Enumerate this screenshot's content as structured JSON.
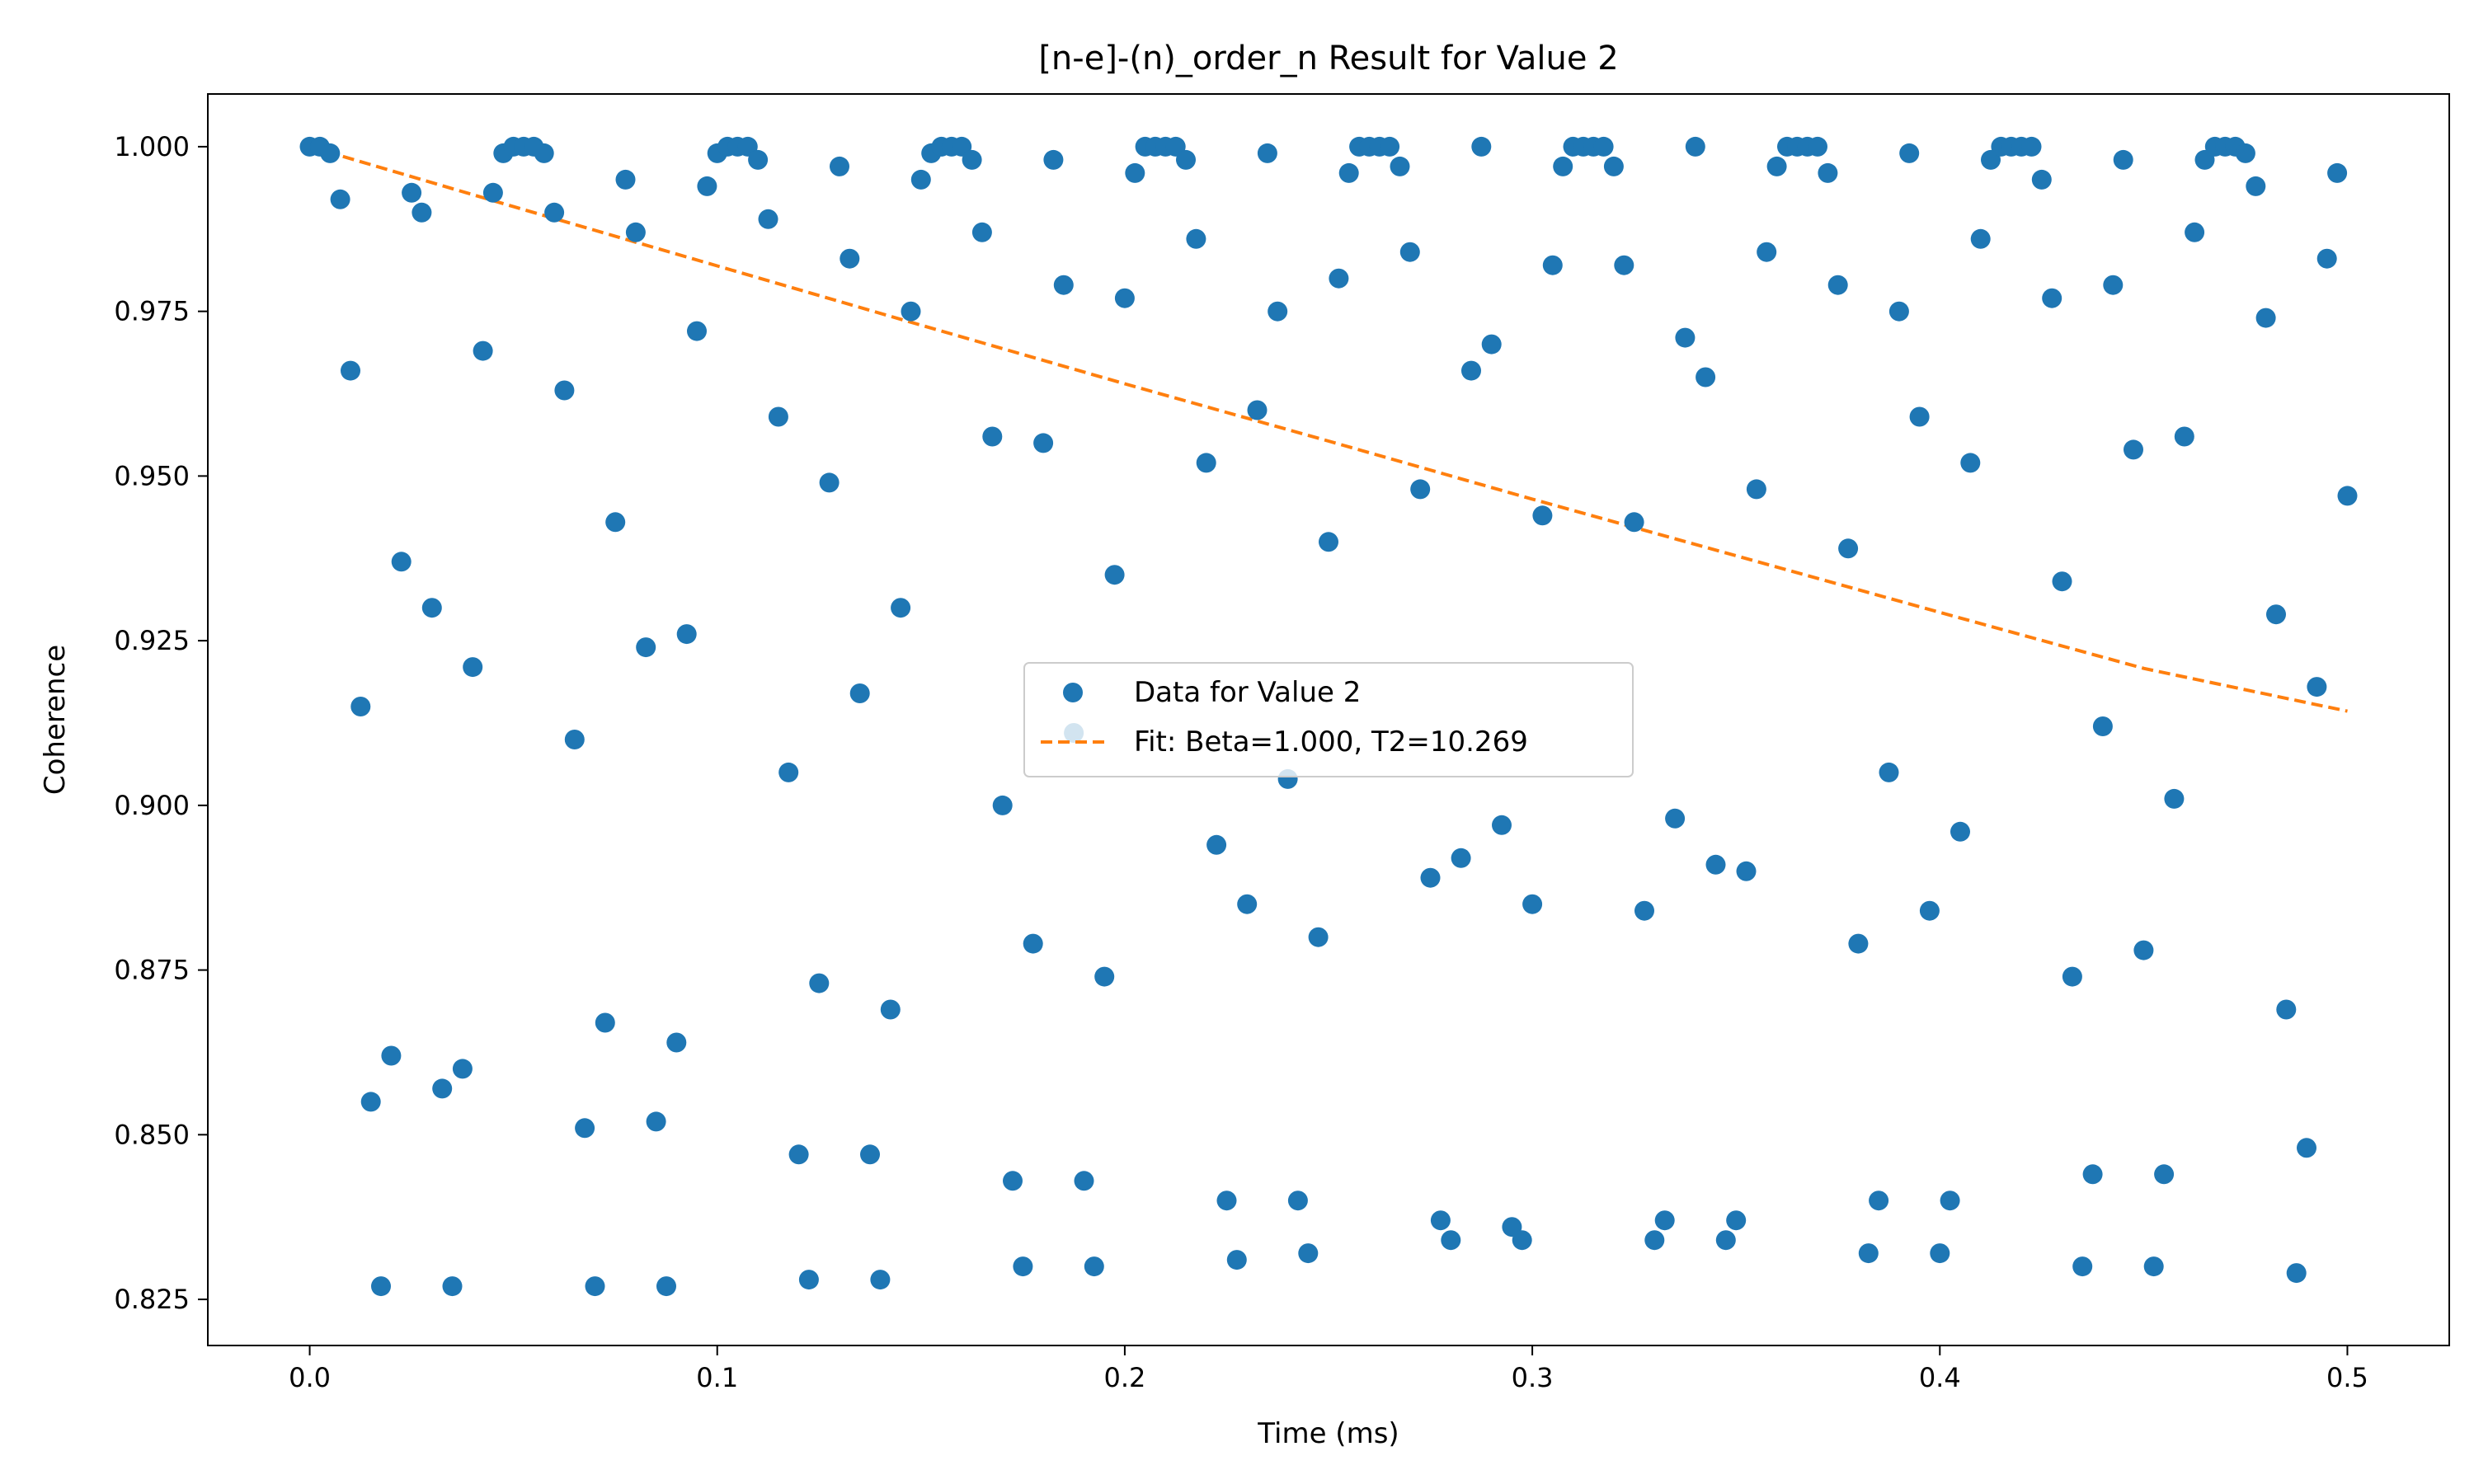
{
  "chart_data": {
    "type": "scatter",
    "title": "[n-e]-(n)_order_n Result for Value 2",
    "xlabel": "Time (ms)",
    "ylabel": "Coherence",
    "xlim": [
      -0.025,
      0.525
    ],
    "ylim": [
      0.818,
      1.008
    ],
    "xticks": [
      0.0,
      0.1,
      0.2,
      0.3,
      0.4,
      0.5
    ],
    "xtick_labels": [
      "0.0",
      "0.1",
      "0.2",
      "0.3",
      "0.4",
      "0.5"
    ],
    "yticks": [
      0.825,
      0.85,
      0.875,
      0.9,
      0.925,
      0.95,
      0.975,
      1.0
    ],
    "ytick_labels": [
      "0.825",
      "0.850",
      "0.875",
      "0.900",
      "0.925",
      "0.950",
      "0.975",
      "1.000"
    ],
    "grid": false,
    "legend_position": "center",
    "series": [
      {
        "name": "Data for Value 2",
        "kind": "scatter",
        "color": "#1f77b4",
        "x": [
          0.0,
          0.0025,
          0.005,
          0.0075,
          0.01,
          0.0125,
          0.015,
          0.0175,
          0.02,
          0.0225,
          0.025,
          0.0275,
          0.03,
          0.0325,
          0.035,
          0.0375,
          0.04,
          0.0425,
          0.045,
          0.0475,
          0.05,
          0.0525,
          0.055,
          0.0575,
          0.06,
          0.0625,
          0.065,
          0.0675,
          0.07,
          0.0725,
          0.075,
          0.0775,
          0.08,
          0.0825,
          0.085,
          0.0875,
          0.09,
          0.0925,
          0.095,
          0.0975,
          0.1,
          0.1025,
          0.105,
          0.1075,
          0.11,
          0.1125,
          0.115,
          0.1175,
          0.12,
          0.1225,
          0.125,
          0.1275,
          0.13,
          0.1325,
          0.135,
          0.1375,
          0.14,
          0.1425,
          0.145,
          0.1475,
          0.15,
          0.1525,
          0.155,
          0.1575,
          0.16,
          0.1625,
          0.165,
          0.1675,
          0.17,
          0.1725,
          0.175,
          0.1775,
          0.18,
          0.1825,
          0.185,
          0.1875,
          0.19,
          0.1925,
          0.195,
          0.1975,
          0.2,
          0.2025,
          0.205,
          0.2075,
          0.21,
          0.2125,
          0.215,
          0.2175,
          0.22,
          0.2225,
          0.225,
          0.2275,
          0.23,
          0.2325,
          0.235,
          0.2375,
          0.24,
          0.2425,
          0.245,
          0.2475,
          0.25,
          0.2525,
          0.255,
          0.2575,
          0.26,
          0.2625,
          0.265,
          0.2675,
          0.27,
          0.2725,
          0.275,
          0.2775,
          0.28,
          0.2825,
          0.285,
          0.2875,
          0.29,
          0.2925,
          0.295,
          0.2975,
          0.3,
          0.3025,
          0.305,
          0.3075,
          0.31,
          0.3125,
          0.315,
          0.3175,
          0.32,
          0.3225,
          0.325,
          0.3275,
          0.33,
          0.3325,
          0.335,
          0.3375,
          0.34,
          0.3425,
          0.345,
          0.3475,
          0.35,
          0.3525,
          0.355,
          0.3575,
          0.36,
          0.3625,
          0.365,
          0.3675,
          0.37,
          0.3725,
          0.375,
          0.3775,
          0.38,
          0.3825,
          0.385,
          0.3875,
          0.39,
          0.3925,
          0.395,
          0.3975,
          0.4,
          0.4025,
          0.405,
          0.4075,
          0.41,
          0.4125,
          0.415,
          0.4175,
          0.42,
          0.4225,
          0.425,
          0.4275,
          0.43,
          0.4325,
          0.435,
          0.4375,
          0.44,
          0.4425,
          0.445,
          0.4475,
          0.45,
          0.4525,
          0.455,
          0.4575,
          0.46,
          0.4625,
          0.465,
          0.4675,
          0.47,
          0.4725,
          0.475,
          0.4775,
          0.48,
          0.4825,
          0.485,
          0.4875,
          0.49,
          0.4925,
          0.495,
          0.4975,
          0.5
        ],
        "y": [
          1.0,
          1.0,
          0.999,
          0.992,
          0.966,
          0.915,
          0.855,
          0.827,
          0.862,
          0.937,
          0.993,
          0.99,
          0.93,
          0.857,
          0.827,
          0.86,
          0.921,
          0.969,
          0.993,
          0.999,
          1.0,
          1.0,
          1.0,
          0.999,
          0.99,
          0.963,
          0.91,
          0.851,
          0.827,
          0.867,
          0.943,
          0.995,
          0.987,
          0.924,
          0.852,
          0.827,
          0.864,
          0.926,
          0.972,
          0.994,
          0.999,
          1.0,
          1.0,
          1.0,
          0.998,
          0.989,
          0.959,
          0.905,
          0.847,
          0.828,
          0.873,
          0.949,
          0.997,
          0.983,
          0.917,
          0.847,
          0.828,
          0.869,
          0.93,
          0.975,
          0.995,
          0.999,
          1.0,
          1.0,
          1.0,
          0.998,
          0.987,
          0.956,
          0.9,
          0.843,
          0.83,
          0.879,
          0.955,
          0.998,
          0.979,
          0.911,
          0.843,
          0.83,
          0.874,
          0.935,
          0.977,
          0.996,
          1.0,
          1.0,
          1.0,
          1.0,
          0.998,
          0.986,
          0.952,
          0.894,
          0.84,
          0.831,
          0.885,
          0.96,
          0.999,
          0.975,
          0.904,
          0.84,
          0.832,
          0.88,
          0.94,
          0.98,
          0.996,
          1.0,
          1.0,
          1.0,
          1.0,
          0.997,
          0.984,
          0.948,
          0.889,
          0.837,
          0.834,
          0.892,
          0.966,
          1.0,
          0.97,
          0.897,
          0.836,
          0.834,
          0.885,
          0.944,
          0.982,
          0.997,
          1.0,
          1.0,
          1.0,
          1.0,
          0.997,
          0.982,
          0.943,
          0.884,
          0.834,
          0.837,
          0.898,
          0.971,
          1.0,
          0.965,
          0.891,
          0.834,
          0.837,
          0.89,
          0.948,
          0.984,
          0.997,
          1.0,
          1.0,
          1.0,
          1.0,
          0.996,
          0.979,
          0.939,
          0.879,
          0.832,
          0.84,
          0.905,
          0.975,
          0.999,
          0.959,
          0.884,
          0.832,
          0.84,
          0.896,
          0.952,
          0.986,
          0.998,
          1.0,
          1.0,
          1.0,
          1.0,
          0.995,
          0.977,
          0.934,
          0.874,
          0.83,
          0.844,
          0.912,
          0.979,
          0.998,
          0.954,
          0.878,
          0.83,
          0.844,
          0.901,
          0.956,
          0.987,
          0.998,
          1.0,
          1.0,
          1.0,
          0.999,
          0.994,
          0.974,
          0.929,
          0.869,
          0.829,
          0.848,
          0.918,
          0.983,
          0.996,
          0.947
        ]
      },
      {
        "name": "Fit: Beta=1.000, T2=10.269",
        "kind": "line",
        "dash": "dashed",
        "color": "#ff7f0e",
        "x": [
          0.0,
          0.05,
          0.1,
          0.15,
          0.2,
          0.25,
          0.3,
          0.35,
          0.4,
          0.45,
          0.5
        ],
        "y": [
          1.0,
          0.9909,
          0.9819,
          0.9729,
          0.964,
          0.9553,
          0.9465,
          0.9379,
          0.9293,
          0.9208,
          0.9143
        ]
      }
    ]
  }
}
